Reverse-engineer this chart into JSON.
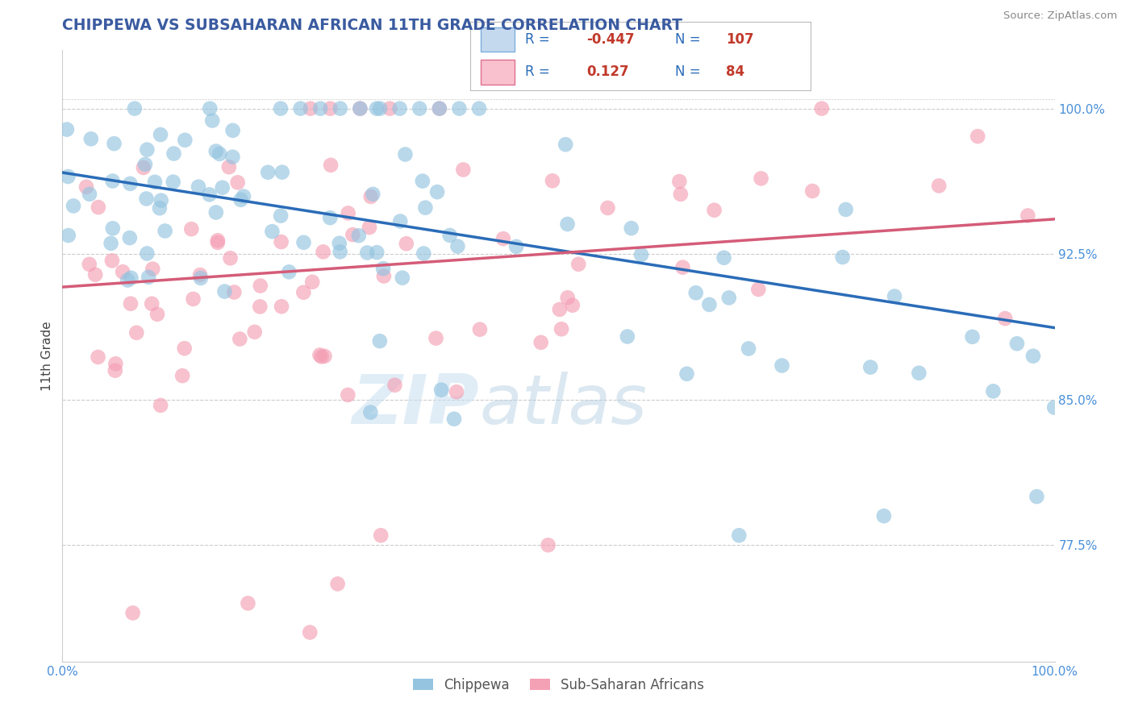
{
  "title": "CHIPPEWA VS SUBSAHARAN AFRICAN 11TH GRADE CORRELATION CHART",
  "source_text": "Source: ZipAtlas.com",
  "ylabel": "11th Grade",
  "xlim": [
    0.0,
    1.0
  ],
  "ylim": [
    0.715,
    1.03
  ],
  "yticks": [
    0.775,
    0.85,
    0.925,
    1.0
  ],
  "ytick_labels": [
    "77.5%",
    "85.0%",
    "92.5%",
    "100.0%"
  ],
  "xtick_labels": [
    "0.0%",
    "100.0%"
  ],
  "legend_r_blue": "-0.447",
  "legend_n_blue": "107",
  "legend_r_pink": "0.127",
  "legend_n_pink": "84",
  "blue_color": "#94c4e0",
  "pink_color": "#f4a0b5",
  "blue_line_color": "#2b6cb8",
  "pink_line_color": "#d45c78",
  "grid_color": "#cccccc",
  "blue_line_start_y": 0.967,
  "blue_line_end_y": 0.887,
  "pink_line_start_y": 0.908,
  "pink_line_end_y": 0.943,
  "title_color": "#3a5ba0",
  "tick_color": "#4a90d9",
  "ylabel_color": "#444444",
  "source_color": "#888888",
  "watermark_zip_color": "#c8dff0",
  "watermark_atlas_color": "#b0cce0"
}
